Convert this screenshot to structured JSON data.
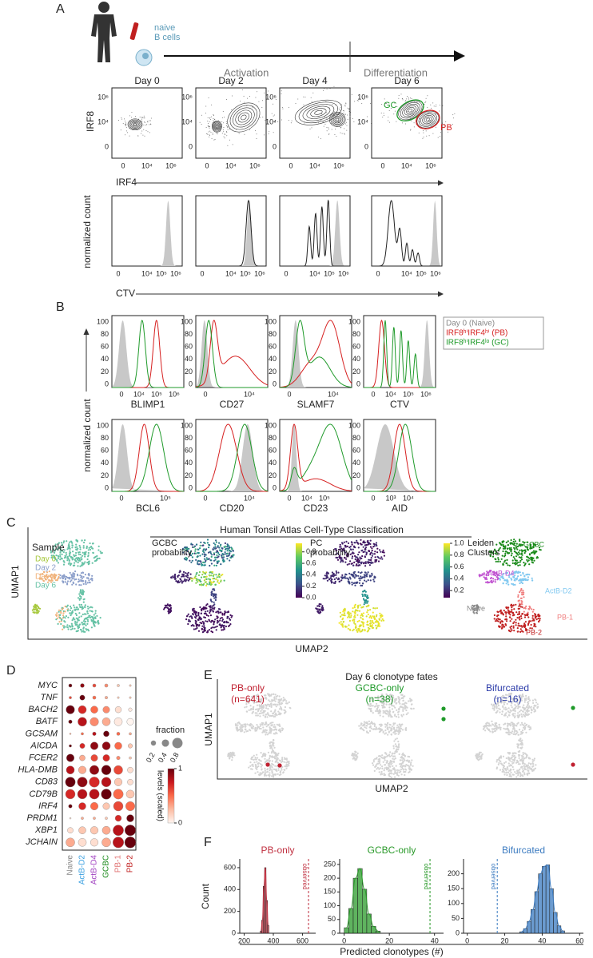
{
  "panel_labels": [
    "A",
    "B",
    "C",
    "D",
    "E",
    "F"
  ],
  "panel_a": {
    "cell_label": [
      "naive",
      "B cells"
    ],
    "stages": [
      "Activation",
      "Differentiation"
    ],
    "days": [
      "Day 0",
      "Day 2",
      "Day 4",
      "Day 6"
    ],
    "gates": [
      {
        "name": "GC",
        "color": "#1f9a2a"
      },
      {
        "name": "PB",
        "color": "#d62020"
      }
    ],
    "contour_y_label": "IRF8",
    "contour_x_label": "IRF4",
    "contour_yticks": [
      "10⁶",
      "10⁴",
      "0"
    ],
    "contour_xticks": [
      "0",
      "10⁴",
      "10⁶"
    ],
    "hist_y_label": "normalized count",
    "hist_x_label": "CTV",
    "hist_xticks": [
      "0",
      "10⁴",
      "10⁵",
      "10⁶"
    ]
  },
  "panel_b": {
    "y_label": "normalized count",
    "yticks": [
      100,
      80,
      60,
      40,
      20,
      0
    ],
    "markers": [
      {
        "name": "BLIMP1",
        "xticks": [
          "0",
          "10⁴",
          "10⁵",
          "10⁶"
        ]
      },
      {
        "name": "CD27",
        "xticks": [
          "0",
          "10⁴"
        ]
      },
      {
        "name": "SLAMF7",
        "xticks": [
          "0",
          "10⁴"
        ]
      },
      {
        "name": "CTV",
        "xticks": [
          "0",
          "10⁴",
          "10⁵",
          "10⁶"
        ]
      },
      {
        "name": "BCL6",
        "xticks": [
          "0",
          "10⁵"
        ]
      },
      {
        "name": "CD20",
        "xticks": [
          "0",
          "10⁴"
        ]
      },
      {
        "name": "CD23",
        "xticks": [
          "0",
          "10⁴",
          "10⁵"
        ]
      },
      {
        "name": "AID",
        "xticks": [
          "0",
          "10³",
          "10⁴"
        ]
      }
    ],
    "legend": [
      {
        "name": "Day 0 (Naive)",
        "color": "#888888"
      },
      {
        "name": "IRF8ʰⁱIRF4ʰⁱ (PB)",
        "color": "#d62020"
      },
      {
        "name": "IRF8ʰⁱIRF4ˡᵒ (GC)",
        "color": "#1f9a2a"
      }
    ]
  },
  "panel_c": {
    "title": "Human Tonsil Atlas Cell-Type Classification",
    "sample_title": "Sample",
    "samples": [
      {
        "name": "Day 0",
        "color": "#a6c83c"
      },
      {
        "name": "Day 2",
        "color": "#8da0cb"
      },
      {
        "name": "Day 4",
        "color": "#f0b27a"
      },
      {
        "name": "Day 6",
        "color": "#66c2a5"
      }
    ],
    "gcbc": {
      "title": [
        "GCBC",
        "probability"
      ],
      "lim": [
        0,
        0.95
      ],
      "ticks": [
        {
          "value": 0,
          "label": "0.0"
        },
        0.2,
        0.4,
        0.6,
        0.8
      ]
    },
    "pc": {
      "title": [
        "PC",
        "probability"
      ],
      "lim": [
        0.08,
        1.0
      ],
      "ticks": [
        0.2,
        0.4,
        0.6,
        0.8,
        {
          "value": 1,
          "label": "1.0"
        }
      ]
    },
    "leiden_title": [
      "Leiden",
      "Clusters"
    ],
    "clusters": [
      {
        "name": "GCBC",
        "color": "#1a8a1a"
      },
      {
        "name": "ActB-D4",
        "color": "#c050d0"
      },
      {
        "name": "ActB-D2",
        "color": "#80c8f0"
      },
      {
        "name": "Naive",
        "color": "#888888"
      },
      {
        "name": "PB-1",
        "color": "#f08080"
      },
      {
        "name": "PB-2",
        "color": "#c02020"
      }
    ],
    "y_label": "UMAP1",
    "x_label": "UMAP2"
  },
  "panel_e": {
    "title": "Day 6 clonotype fates",
    "groups": [
      {
        "name": "PB-only",
        "n": "(n=641)",
        "color": "#c02030"
      },
      {
        "name": "GCBC-only",
        "n": "(n=38)",
        "color": "#1f9a2a"
      },
      {
        "name": "Bifurcated",
        "n": "(n=16)",
        "color": "#2a3aa8"
      }
    ],
    "y_label": "UMAP1",
    "x_label": "UMAP2"
  },
  "panel_f": {
    "x_label": "Predicted clonotypes (#)"
  },
  "chart_data": [
    {
      "type": "dot",
      "genes": [
        "MYC",
        "TNF",
        "BACH2",
        "BATF",
        "GCSAM",
        "AICDA",
        "FCER2",
        "HLA-DMB",
        "CD83",
        "CD79B",
        "IRF4",
        "PRDM1",
        "XBP1",
        "JCHAIN"
      ],
      "categories": [
        "Naive",
        "ActB-D2",
        "ActB-D4",
        "GCBC",
        "PB-1",
        "PB-2"
      ],
      "category_colors": [
        "#888888",
        "#3aa0e0",
        "#a040c0",
        "#1a8a1a",
        "#e07070",
        "#c02020"
      ],
      "fraction": [
        [
          0.08,
          0.12,
          0.08,
          0.08,
          0.05,
          0.03
        ],
        [
          0.05,
          0.2,
          0.08,
          0.06,
          0.03,
          0.03
        ],
        [
          0.55,
          0.5,
          0.4,
          0.35,
          0.3,
          0.1
        ],
        [
          0.1,
          0.6,
          0.55,
          0.5,
          0.5,
          0.35
        ],
        [
          0.02,
          0.05,
          0.1,
          0.25,
          0.08,
          0.05
        ],
        [
          0.05,
          0.2,
          0.45,
          0.5,
          0.4,
          0.15
        ],
        [
          0.45,
          0.25,
          0.35,
          0.35,
          0.1,
          0.05
        ],
        [
          0.5,
          0.45,
          0.65,
          0.7,
          0.6,
          0.25
        ],
        [
          0.75,
          0.75,
          0.8,
          0.7,
          0.45,
          0.25
        ],
        [
          0.7,
          0.7,
          0.75,
          0.8,
          0.75,
          0.5
        ],
        [
          0.1,
          0.4,
          0.45,
          0.35,
          0.7,
          0.65
        ],
        [
          0.02,
          0.05,
          0.05,
          0.05,
          0.3,
          0.4
        ],
        [
          0.25,
          0.4,
          0.45,
          0.5,
          0.85,
          0.9
        ],
        [
          0.6,
          0.5,
          0.45,
          0.6,
          0.9,
          0.95
        ]
      ],
      "level": [
        [
          1,
          0.9,
          0.6,
          0.4,
          0.2,
          0.2
        ],
        [
          0.6,
          1,
          0.5,
          0.3,
          0.2,
          0.2
        ],
        [
          1,
          0.7,
          0.5,
          0.4,
          0.1,
          0.05
        ],
        [
          1,
          0.8,
          0.4,
          0.3,
          0.05,
          0
        ],
        [
          0.3,
          0.5,
          0.8,
          1,
          0.5,
          0.3
        ],
        [
          1,
          0.7,
          0.9,
          0.9,
          0.5,
          0.2
        ],
        [
          1,
          0.3,
          0.6,
          0.7,
          0.4,
          0.2
        ],
        [
          0.8,
          0.3,
          0.9,
          1,
          0.6,
          0.1
        ],
        [
          1,
          0.9,
          0.7,
          0.8,
          0.2,
          0.1
        ],
        [
          0.7,
          0.8,
          0.8,
          1,
          0.5,
          0.2
        ],
        [
          1,
          0.7,
          0.5,
          0.2,
          0.6,
          0.5
        ],
        [
          0.1,
          0.3,
          0.3,
          0.2,
          0.7,
          1
        ],
        [
          0.1,
          0.2,
          0.2,
          0.3,
          0.8,
          1
        ],
        [
          0.3,
          0.1,
          0.1,
          0.3,
          0.8,
          1
        ]
      ],
      "fraction_legend": {
        "title": "fraction",
        "ticks": [
          0.2,
          0.4,
          0.8
        ]
      },
      "colorbar": {
        "title": "levels (scaled)",
        "lim": [
          0,
          1
        ],
        "ticks": [
          1,
          0
        ]
      }
    },
    {
      "type": "histogram",
      "title": "PB-only",
      "color": "#c03040",
      "y_label": "Count",
      "bins": [
        310,
        320,
        330,
        340,
        350,
        360,
        370
      ],
      "counts": [
        20,
        120,
        430,
        600,
        300,
        70
      ],
      "observed": 641,
      "observed_label": "observed",
      "xlim": [
        170,
        690
      ],
      "xticks": [
        200,
        400,
        600
      ],
      "ylim": [
        0,
        680
      ],
      "yticks": [
        0,
        200,
        400,
        600
      ]
    },
    {
      "type": "histogram",
      "title": "GCBC-only",
      "color": "#2a9a2a",
      "bins": [
        0,
        2,
        4,
        6,
        8,
        10,
        12,
        14,
        16
      ],
      "counts": [
        20,
        90,
        200,
        235,
        160,
        70,
        25,
        8
      ],
      "observed": 38,
      "observed_label": "observed",
      "xlim": [
        -2,
        44
      ],
      "xticks": [
        0,
        20,
        40
      ],
      "ylim": [
        0,
        270
      ],
      "yticks": [
        0,
        50,
        100,
        150,
        200,
        250
      ]
    },
    {
      "type": "histogram",
      "title": "Bifurcated",
      "color": "#3a7ac0",
      "bins": [
        28,
        30,
        32,
        34,
        36,
        38,
        40,
        42,
        44,
        46,
        48,
        50,
        52
      ],
      "counts": [
        5,
        15,
        40,
        80,
        140,
        200,
        225,
        230,
        150,
        70,
        25,
        8
      ],
      "observed": 16,
      "observed_label": "observed",
      "xlim": [
        -2,
        62
      ],
      "xticks": [
        0,
        20,
        40,
        60
      ],
      "ylim": [
        0,
        250
      ],
      "yticks": [
        0,
        50,
        100,
        150,
        200
      ]
    }
  ]
}
